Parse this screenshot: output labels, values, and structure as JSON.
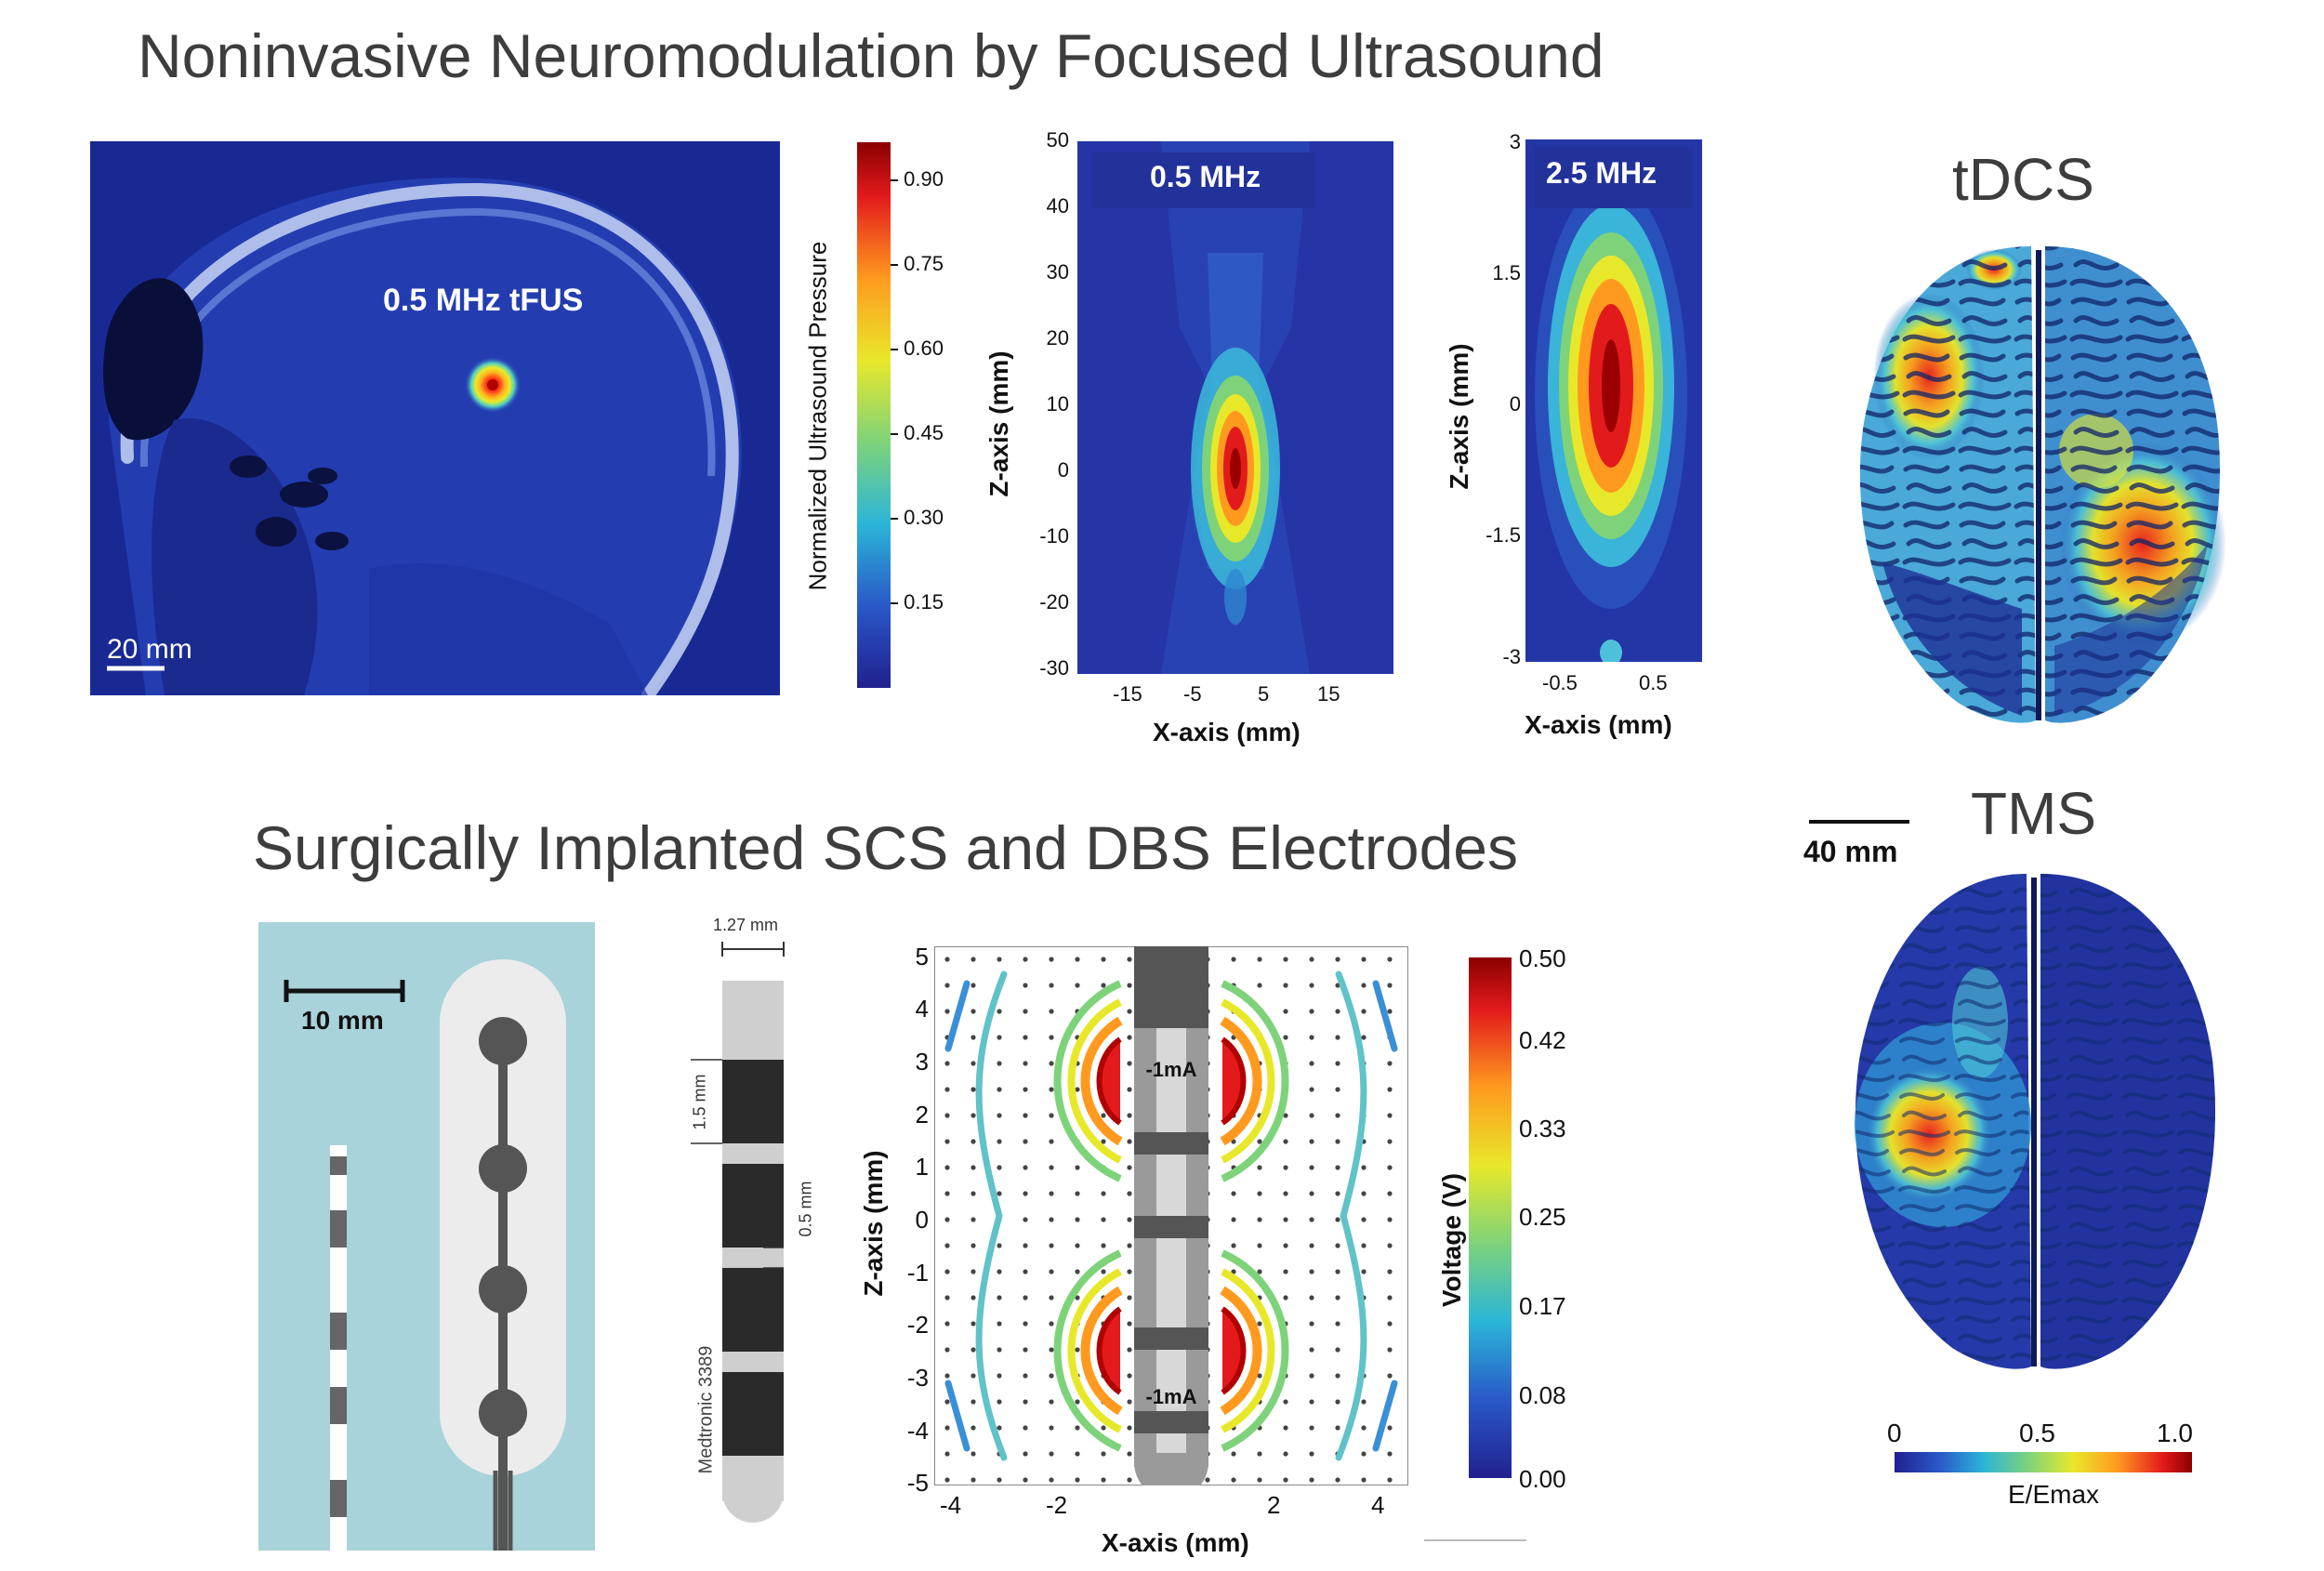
{
  "headings": {
    "top": "Noninvasive Neuromodulation by Focused Ultrasound",
    "bottom": "Surgically Implanted SCS and DBS Electrodes"
  },
  "tfus_panel": {
    "label": "0.5 MHz tFUS",
    "scale": "20 mm"
  },
  "pressure_colorbar": {
    "label": "Normalized Ultrasound Pressure",
    "ticks": [
      "0.90",
      "0.75",
      "0.60",
      "0.45",
      "0.30",
      "0.15"
    ]
  },
  "map_05": {
    "label": "0.5 MHz",
    "y_ticks": [
      "50",
      "40",
      "30",
      "20",
      "10",
      "0",
      "-10",
      "-20",
      "-30"
    ],
    "x_ticks": [
      "-15",
      "-5",
      "5",
      "15"
    ],
    "x_label": "X-axis (mm)",
    "y_label": "Z-axis (mm)"
  },
  "map_25": {
    "label": "2.5 MHz",
    "y_ticks": [
      "3",
      "1.5",
      "0",
      "-1.5",
      "-3"
    ],
    "x_ticks": [
      "-0.5",
      "0.5"
    ],
    "x_label": "X-axis (mm)",
    "y_label": "Z-axis (mm)"
  },
  "tdcs": {
    "title": "tDCS"
  },
  "tms": {
    "title": "TMS",
    "scale": "40 mm"
  },
  "emax_colorbar": {
    "ticks": [
      "0",
      "0.5",
      "1.0"
    ],
    "label": "E/Emax"
  },
  "scs": {
    "scale": "10 mm"
  },
  "dbs_lead": {
    "width": "1.27 mm",
    "contact": "1.5 mm",
    "gap": "0.5 mm",
    "model": "Medtronic 3389"
  },
  "voltage_plot": {
    "y_ticks": [
      "5",
      "4",
      "3",
      "2",
      "1",
      "0",
      "-1",
      "-2",
      "-3",
      "-4",
      "-5"
    ],
    "x_ticks": [
      "-4",
      "-2",
      "2",
      "4"
    ],
    "x_label": "X-axis (mm)",
    "y_label": "Z-axis (mm)",
    "current_top": "-1mA",
    "current_bottom": "-1mA"
  },
  "voltage_colorbar": {
    "label": "Voltage (V)",
    "ticks": [
      "0.50",
      "0.42",
      "0.33",
      "0.25",
      "0.17",
      "0.08",
      "0.00"
    ]
  },
  "colors": {
    "heading": "#3d3d3d",
    "deep_blue": "#22329a",
    "scs_bg": "#a9d3da",
    "jet_red": "#c81a1a"
  }
}
